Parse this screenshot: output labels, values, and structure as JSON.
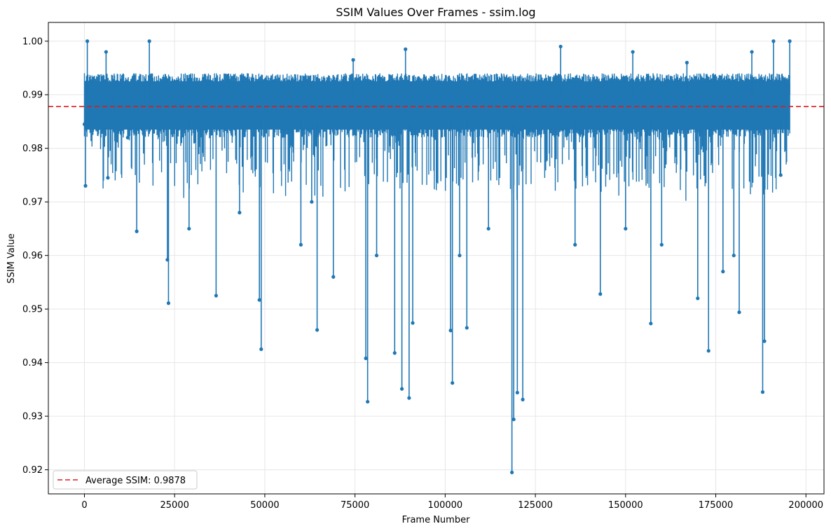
{
  "chart_data": {
    "type": "line",
    "title": "SSIM Values Over Frames - ssim.log",
    "xlabel": "Frame Number",
    "ylabel": "SSIM Value",
    "xlim": [
      -10000,
      205000
    ],
    "ylim": [
      0.9155,
      1.0035
    ],
    "grid": true,
    "legend_position": "lower-left",
    "x_ticks": [
      0,
      25000,
      50000,
      75000,
      100000,
      125000,
      150000,
      175000,
      200000
    ],
    "x_tick_labels": [
      "0",
      "25000",
      "50000",
      "75000",
      "100000",
      "125000",
      "150000",
      "175000",
      "200000"
    ],
    "y_ticks": [
      0.92,
      0.93,
      0.94,
      0.95,
      0.96,
      0.97,
      0.98,
      0.99,
      1.0
    ],
    "y_tick_labels": [
      "0.92",
      "0.93",
      "0.94",
      "0.95",
      "0.96",
      "0.97",
      "0.98",
      "0.99",
      "1.00"
    ],
    "reference_line": {
      "label": "Average SSIM: 0.9878",
      "value": 0.9878,
      "color": "#e31a1c",
      "style": "dashed"
    },
    "series": [
      {
        "color": "#1f77b4",
        "marker": "circle",
        "x_range": [
          0,
          195500
        ],
        "typical_band": [
          0.982,
          0.994
        ],
        "x": [
          0,
          300,
          800,
          1000,
          1500,
          3500,
          6000,
          6500,
          8000,
          12000,
          14500,
          18000,
          18200,
          23000,
          23300,
          27000,
          29000,
          36500,
          37000,
          43000,
          48500,
          49000,
          56000,
          60000,
          63000,
          64500,
          69000,
          74500,
          78000,
          78500,
          81000,
          86000,
          88000,
          89000,
          90000,
          91000,
          96000,
          101500,
          102000,
          104000,
          106000,
          110000,
          112000,
          118500,
          119000,
          120000,
          121500,
          132000,
          136000,
          140000,
          143000,
          150000,
          152000,
          157000,
          160000,
          167000,
          170000,
          173000,
          177000,
          180000,
          181500,
          185000,
          188000,
          188500,
          191000,
          193000,
          195500
        ],
        "y": [
          0.9845,
          0.973,
          1.0,
          0.992,
          0.985,
          0.99,
          0.998,
          0.9745,
          0.988,
          0.982,
          0.9645,
          1.0,
          0.988,
          0.9592,
          0.9511,
          0.988,
          0.965,
          0.9525,
          0.99,
          0.968,
          0.9517,
          0.9425,
          0.988,
          0.962,
          0.97,
          0.9461,
          0.956,
          0.9965,
          0.9408,
          0.9327,
          0.96,
          0.9418,
          0.9351,
          0.9985,
          0.9334,
          0.9474,
          0.99,
          0.946,
          0.9362,
          0.96,
          0.9465,
          0.989,
          0.965,
          0.9195,
          0.9294,
          0.9344,
          0.9331,
          0.999,
          0.962,
          0.988,
          0.9528,
          0.965,
          0.998,
          0.9473,
          0.962,
          0.996,
          0.952,
          0.9422,
          0.957,
          0.96,
          0.9494,
          0.998,
          0.9345,
          0.944,
          1.0,
          0.975,
          1.0
        ]
      }
    ]
  }
}
